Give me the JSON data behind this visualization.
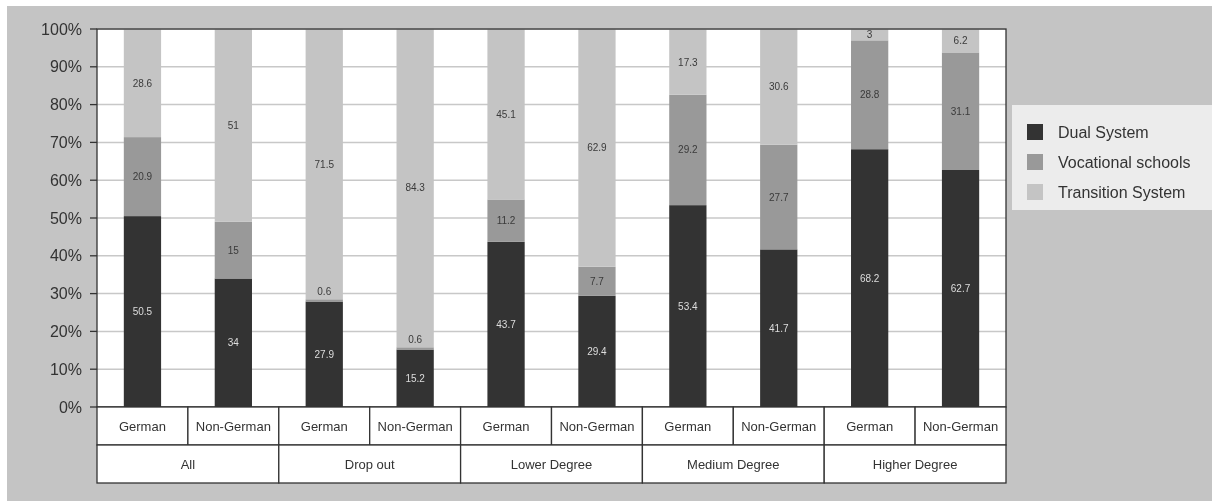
{
  "chart_data": {
    "type": "bar",
    "stacked": true,
    "categories": [
      "German",
      "Non-German",
      "German",
      "Non-German",
      "German",
      "Non-German",
      "German",
      "Non-German",
      "German",
      "Non-German"
    ],
    "annotations": [
      "All",
      "Drop out",
      "Lower Degree",
      "Medium Degree",
      "Higher Degree"
    ],
    "series": [
      {
        "name": "Dual System",
        "color": "#333333",
        "values": [
          50.5,
          34,
          27.9,
          15.2,
          43.7,
          29.4,
          53.4,
          41.7,
          68.2,
          62.7
        ]
      },
      {
        "name": "Vocational schools",
        "color": "#999999",
        "values": [
          20.9,
          15,
          0.6,
          0.6,
          11.2,
          7.7,
          29.2,
          27.7,
          28.8,
          31.1
        ]
      },
      {
        "name": "Transition System",
        "color": "#c4c4c4",
        "values": [
          28.6,
          51,
          71.5,
          84.3,
          45.1,
          62.9,
          17.3,
          30.6,
          3,
          6.2
        ]
      }
    ],
    "ylim": [
      0,
      100
    ],
    "yticks": [
      {
        "value": 0,
        "label": "0%"
      },
      {
        "value": 10,
        "label": "10%"
      },
      {
        "value": 20,
        "label": "20%"
      },
      {
        "value": 30,
        "label": "30%"
      },
      {
        "value": 40,
        "label": "40%"
      },
      {
        "value": 50,
        "label": "50%"
      },
      {
        "value": 60,
        "label": "60%"
      },
      {
        "value": 70,
        "label": "70%"
      },
      {
        "value": 80,
        "label": "80%"
      },
      {
        "value": 90,
        "label": "90%"
      },
      {
        "value": 100,
        "label": "100%"
      }
    ],
    "grid": "y",
    "legend": "right",
    "data_labels": true
  }
}
